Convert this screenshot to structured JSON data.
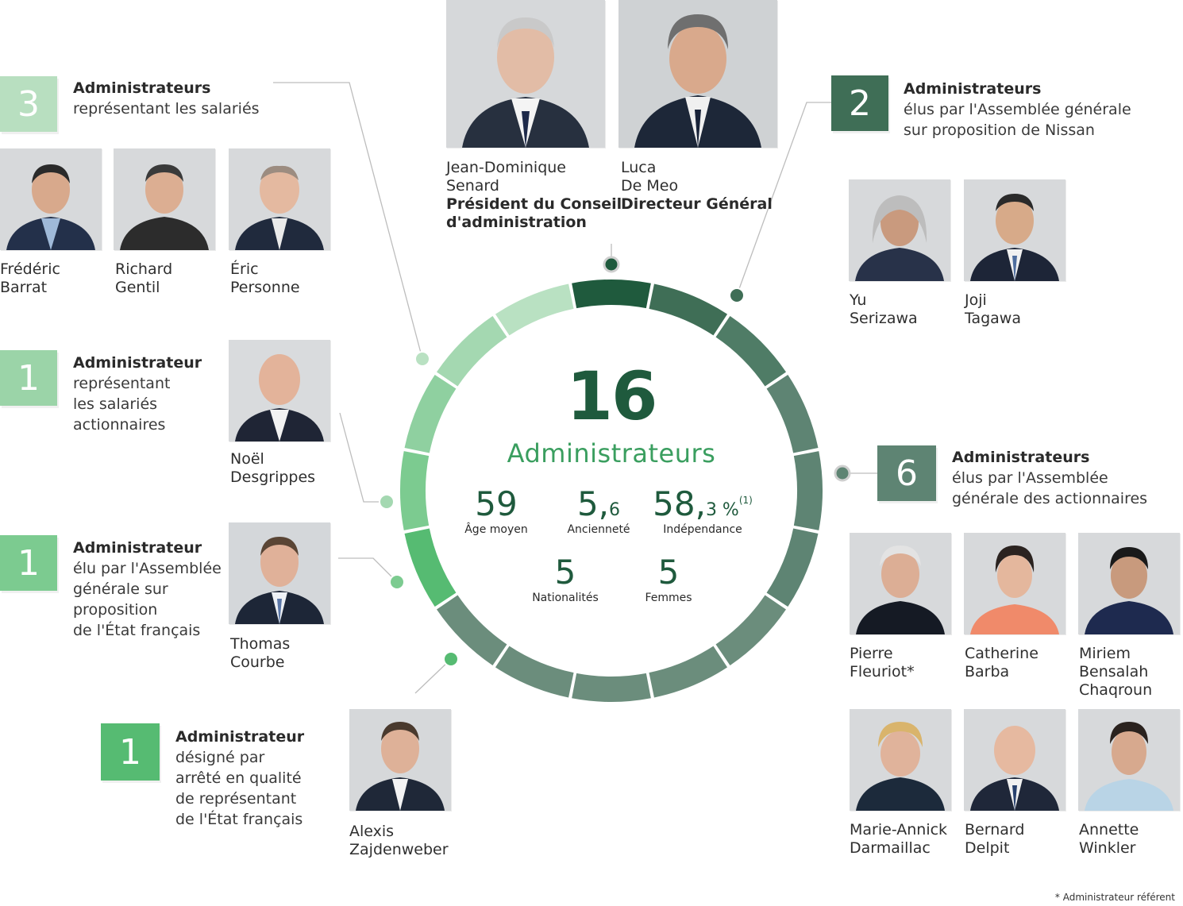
{
  "center": {
    "total": "16",
    "label": "Administrateurs",
    "stats": [
      {
        "value": "59",
        "label": "Âge moyen"
      },
      {
        "value": "5,",
        "small": "6",
        "label": "Ancienneté"
      },
      {
        "value": "58,",
        "small": "3 %",
        "sup": "(1)",
        "label": "Indépendance"
      },
      {
        "value": "5",
        "label": "Nationalités"
      },
      {
        "value": "5",
        "label": "Femmes"
      }
    ]
  },
  "groups": {
    "salaries": {
      "count": "3",
      "title": "Administrateurs",
      "subtitle": "représentant les salariés",
      "color": "#b8dfc0"
    },
    "actionnaires_salaries": {
      "count": "1",
      "title": "Administrateur",
      "subtitle": "représentant\nles salariés\nactionnaires",
      "color": "#9bd4a8"
    },
    "etat_ag": {
      "count": "1",
      "title": "Administrateur",
      "subtitle": "élu par l'Assemblée\ngénérale sur\nproposition\nde l'État français",
      "color": "#7ccb90"
    },
    "etat_arrete": {
      "count": "1",
      "title": "Administrateur",
      "subtitle": "désigné par\narrêté en qualité\nde représentant\nde l'État français",
      "color": "#56bb72"
    },
    "nissan": {
      "count": "2",
      "title": "Administrateurs",
      "subtitle": "élus par l'Assemblée générale\nsur proposition de Nissan",
      "color": "#3f6e56"
    },
    "ag_actionnaires": {
      "count": "6",
      "title": "Administrateurs",
      "subtitle": "élus par l'Assemblée\ngénérale des actionnaires",
      "color": "#5e8473"
    }
  },
  "people": {
    "senard": {
      "first": "Jean-Dominique",
      "last": "Senard",
      "role1": "Président du Conseil",
      "role2": "d'administration"
    },
    "demeo": {
      "first": "Luca",
      "last": "De Meo",
      "role1": "Directeur Général"
    },
    "barrat": {
      "first": "Frédéric",
      "last": "Barrat"
    },
    "gentil": {
      "first": "Richard",
      "last": "Gentil"
    },
    "personne": {
      "first": "Éric",
      "last": "Personne"
    },
    "desgrippes": {
      "first": "Noël",
      "last": "Desgrippes"
    },
    "courbe": {
      "first": "Thomas",
      "last": "Courbe"
    },
    "zajdenweber": {
      "first": "Alexis",
      "last": "Zajdenweber"
    },
    "serizawa": {
      "first": "Yu",
      "last": "Serizawa"
    },
    "tagawa": {
      "first": "Joji",
      "last": "Tagawa"
    },
    "fleuriot": {
      "first": "Pierre",
      "last": "Fleuriot*"
    },
    "barba": {
      "first": "Catherine",
      "last": "Barba"
    },
    "bensalah": {
      "first": "Miriem",
      "last": "Bensalah",
      "last2": "Chaqroun"
    },
    "darmaillac": {
      "first": "Marie-Annick",
      "last": "Darmaillac"
    },
    "delpit": {
      "first": "Bernard",
      "last": "Delpit"
    },
    "winkler": {
      "first": "Annette",
      "last": "Winkler"
    }
  },
  "footnote": "* Administrateur référent",
  "ring_colors": [
    "#1f5a3d",
    "#3f6e56",
    "#4f7c66",
    "#5e8473",
    "#6b8d7c",
    "#b9e1c2",
    "#a4d8b1",
    "#8fd0a0",
    "#7ccb90",
    "#56bb72"
  ]
}
